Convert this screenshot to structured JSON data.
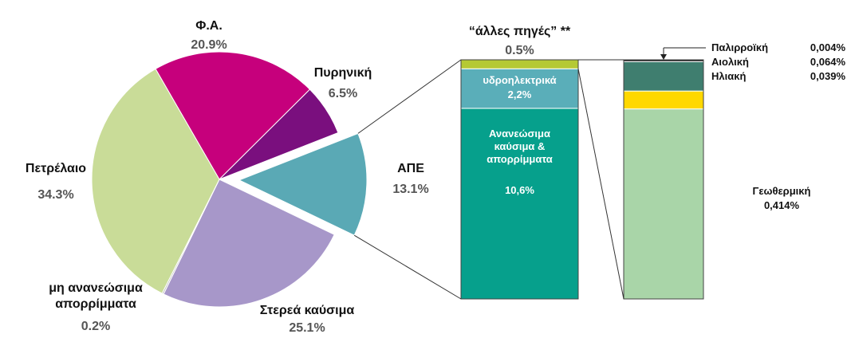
{
  "chart_data": [
    {
      "type": "pie",
      "categories": [
        "Φ.Α.",
        "Πυρηνική",
        "ΑΠΕ",
        "Στερεά καύσιμα",
        "μη ανανεώσιμα απορρίμματα",
        "Πετρέλαιο"
      ],
      "values": [
        20.9,
        6.5,
        13.1,
        25.1,
        0.2,
        34.3
      ],
      "value_labels": [
        "20.9%",
        "6.5%",
        "13.1%",
        "25.1%",
        "0.2%",
        "34.3%"
      ],
      "colors": [
        "#c6007c",
        "#7a0f7e",
        "#5aa9b5",
        "#a797c9",
        "#bbbbbb",
        "#c9dc98"
      ],
      "explode": [
        0,
        0,
        1,
        0,
        0,
        0
      ]
    },
    {
      "type": "stacked_bar",
      "series": [
        {
          "name": "Ανανεώσιμα καύσιμα & απορρίμματα",
          "color": "#06a08c",
          "values": [
            10.6
          ],
          "value_labels": [
            "10,6%"
          ]
        },
        {
          "name": "υδροηλεκτρικά",
          "color": "#5aaeb9",
          "values": [
            2.2
          ],
          "value_labels": [
            "2,2%"
          ]
        },
        {
          "name": "“άλλες πηγές” **",
          "color": "#b5c934",
          "values": [
            0.5
          ],
          "value_labels": [
            "0.5%"
          ]
        }
      ]
    },
    {
      "type": "stacked_bar",
      "series": [
        {
          "name": "Γεωθερμική",
          "color": "#a9d5a8",
          "values": [
            0.414
          ],
          "value_labels": [
            "0,414%"
          ]
        },
        {
          "name": "Ηλιακή",
          "color": "#ffd800",
          "values": [
            0.039
          ],
          "value_labels": [
            "0,039%"
          ]
        },
        {
          "name": "Αιολική",
          "color": "#3f7e6f",
          "values": [
            0.064
          ],
          "value_labels": [
            "0,064%"
          ]
        },
        {
          "name": "Παλιρροϊκή",
          "color": "#222222",
          "values": [
            0.004
          ],
          "value_labels": [
            "0,004%"
          ]
        }
      ]
    }
  ]
}
